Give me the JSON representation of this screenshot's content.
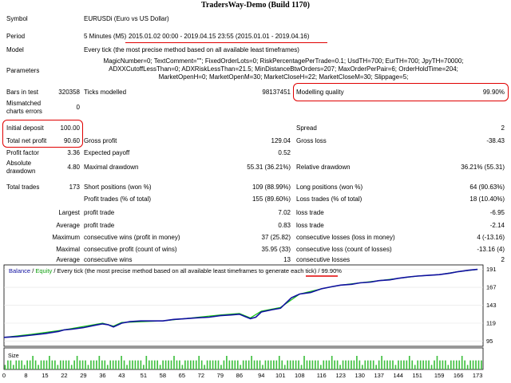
{
  "title": "TradersWay-Demo (Build 1170)",
  "labels": {
    "symbol": "Symbol",
    "period": "Period",
    "model": "Model",
    "parameters": "Parameters",
    "bars_in_test": "Bars in test",
    "ticks_modelled": "Ticks modelled",
    "modelling_quality": "Modelling quality",
    "mismatched": "Mismatched charts errors",
    "initial_deposit": "Initial deposit",
    "spread": "Spread",
    "total_net_profit": "Total net profit",
    "gross_profit": "Gross profit",
    "gross_loss": "Gross loss",
    "profit_factor": "Profit factor",
    "expected_payoff": "Expected payoff",
    "absolute_drawdown": "Absolute drawdown",
    "maximal_drawdown": "Maximal drawdown",
    "relative_drawdown": "Relative drawdown",
    "total_trades": "Total trades",
    "short_positions": "Short positions (won %)",
    "long_positions": "Long positions (won %)",
    "profit_trades": "Profit trades (% of total)",
    "loss_trades": "Loss trades (% of total)",
    "largest": "Largest",
    "average": "Average",
    "maximum": "Maximum",
    "maximal": "Maximal",
    "profit_trade": "profit trade",
    "loss_trade": "loss trade",
    "consecutive_wins_money": "consecutive wins (profit in money)",
    "consecutive_losses_money": "consecutive losses (loss in money)",
    "consecutive_profit_count": "consecutive profit (count of wins)",
    "consecutive_loss_count": "consecutive loss (count of losses)",
    "consecutive_wins": "consecutive wins",
    "consecutive_losses": "consecutive losses"
  },
  "values": {
    "symbol": "EURUSDi (Euro vs US Dollar)",
    "period_prefix": "5 Minutes (M5)",
    "period_range": "2015.01.02 00:00 - 2019.04.15 23:55 (2015.01.01 - 2019.04.16)",
    "model": "Every tick (the most precise method based on all available least timeframes)",
    "parameters": "MagicNumber=0; TextComment=\"\"; FixedOrderLots=0; RiskPercentagePerTrade=0.1; UsdTH=700; EurTH=700; JpyTH=70000; ADXXCutoffLessThan=0; ADXRiskLessThan=21.5; MinDistanceBtwOrders=207; MaxOrderPerPair=6; OrderHoldTime=204; MarketOpenH=0; MarketOpenM=30; MarketCloseH=22; MarketCloseM=30; Slippage=5;",
    "bars_in_test": "320358",
    "ticks_modelled": "98137451",
    "modelling_quality": "99.90%",
    "mismatched": "0",
    "initial_deposit": "100.00",
    "spread": "2",
    "total_net_profit": "90.60",
    "gross_profit": "129.04",
    "gross_loss": "-38.43",
    "profit_factor": "3.36",
    "expected_payoff": "0.52",
    "absolute_drawdown": "4.80",
    "maximal_drawdown": "55.31 (36.21%)",
    "relative_drawdown": "36.21% (55.31)",
    "total_trades": "173",
    "short_positions": "109 (88.99%)",
    "long_positions": "64 (90.63%)",
    "profit_trades": "155 (89.60%)",
    "loss_trades": "18 (10.40%)",
    "largest_profit": "7.02",
    "largest_loss": "-6.95",
    "average_profit": "0.83",
    "average_loss": "-2.14",
    "max_cons_wins_money": "37 (25.82)",
    "max_cons_losses_money": "4 (-13.16)",
    "maximal_cons_profit": "35.95 (33)",
    "maximal_cons_loss": "-13.16 (4)",
    "average_cons_wins": "13",
    "average_cons_losses": "2"
  },
  "chart_header": {
    "balance": "Balance",
    "sep1": " / ",
    "equity": "Equity",
    "rest": " / Every tick (the most precise method based on all available least timeframes to generate each tick)",
    "sep2": " / ",
    "quality": "99.90%"
  },
  "size_label": "Size",
  "colors": {
    "balance": "#1010a0",
    "equity": "#10c010",
    "size_bars": "#40c040",
    "highlight": "#e00000"
  },
  "chart_data": {
    "type": "line",
    "yticks": [
      95,
      119,
      143,
      167,
      191
    ],
    "xticks": [
      0,
      8,
      15,
      22,
      29,
      36,
      43,
      51,
      58,
      65,
      72,
      79,
      86,
      94,
      101,
      108,
      116,
      123,
      130,
      137,
      144,
      151,
      159,
      166,
      173
    ],
    "ylim": [
      88,
      197
    ],
    "xlim": [
      0,
      175
    ],
    "series": [
      {
        "name": "Balance",
        "x": [
          0,
          5,
          10,
          15,
          20,
          22,
          25,
          29,
          33,
          36,
          38,
          40,
          43,
          46,
          50,
          55,
          58,
          62,
          66,
          70,
          75,
          79,
          83,
          86,
          88,
          90,
          92,
          94,
          98,
          101,
          105,
          108,
          112,
          116,
          120,
          123,
          127,
          130,
          134,
          137,
          141,
          144,
          148,
          151,
          155,
          159,
          163,
          166,
          170,
          173
        ],
        "y": [
          100,
          101,
          103,
          105,
          108,
          110,
          111,
          113,
          116,
          118,
          117,
          114,
          119,
          121,
          122,
          122,
          122,
          124,
          125,
          126,
          127,
          129,
          130,
          131,
          128,
          125,
          127,
          134,
          137,
          139,
          153,
          158,
          160,
          165,
          168,
          170,
          171,
          173,
          174,
          176,
          177,
          179,
          181,
          182,
          183,
          184,
          186,
          188,
          190,
          191
        ]
      },
      {
        "name": "Equity",
        "x": [
          0,
          10,
          20,
          22,
          36,
          40,
          43,
          58,
          79,
          86,
          90,
          94,
          101,
          108,
          116,
          123,
          130,
          137,
          144,
          151,
          159,
          166,
          173
        ],
        "y": [
          100,
          104,
          109,
          110,
          119,
          115,
          120,
          122,
          130,
          132,
          126,
          135,
          140,
          158,
          165,
          170,
          173,
          176,
          179,
          182,
          184,
          188,
          191
        ]
      }
    ],
    "size_values": [
      1,
      2,
      2,
      1,
      2,
      2,
      2,
      1,
      2,
      2,
      3,
      2,
      1,
      2,
      2,
      2,
      3,
      2,
      2,
      1,
      2,
      2,
      2,
      2,
      1,
      2,
      3,
      2,
      2,
      2,
      1,
      2,
      2,
      2,
      3,
      2,
      2,
      1,
      2,
      2,
      2,
      2,
      3,
      2,
      1,
      2,
      2,
      2,
      2,
      2,
      1,
      3,
      2,
      2,
      2,
      2,
      1,
      2,
      2,
      2,
      2,
      3,
      2,
      2,
      1,
      2,
      2,
      2,
      2,
      2,
      3,
      2,
      1,
      2,
      2,
      2,
      2,
      2,
      1,
      2,
      3,
      2,
      2,
      2,
      2,
      1,
      2,
      2,
      2,
      3,
      2,
      2,
      2,
      1,
      2,
      2,
      2,
      2,
      2,
      3,
      2,
      1,
      2,
      2,
      2,
      2,
      2,
      1,
      3,
      2,
      2,
      2,
      2,
      2,
      1,
      2,
      2,
      2,
      3,
      2,
      2,
      1,
      2,
      2,
      2,
      2,
      2,
      3,
      2,
      1,
      2,
      2,
      2,
      2,
      1,
      2,
      3,
      2,
      2,
      2,
      2,
      1,
      2,
      2,
      2,
      2,
      3,
      2,
      1,
      2,
      2,
      2,
      2,
      2,
      1,
      2,
      3,
      2,
      2,
      2,
      1,
      2,
      2,
      2,
      2,
      3,
      2,
      1,
      2,
      2,
      2,
      2,
      2
    ]
  }
}
